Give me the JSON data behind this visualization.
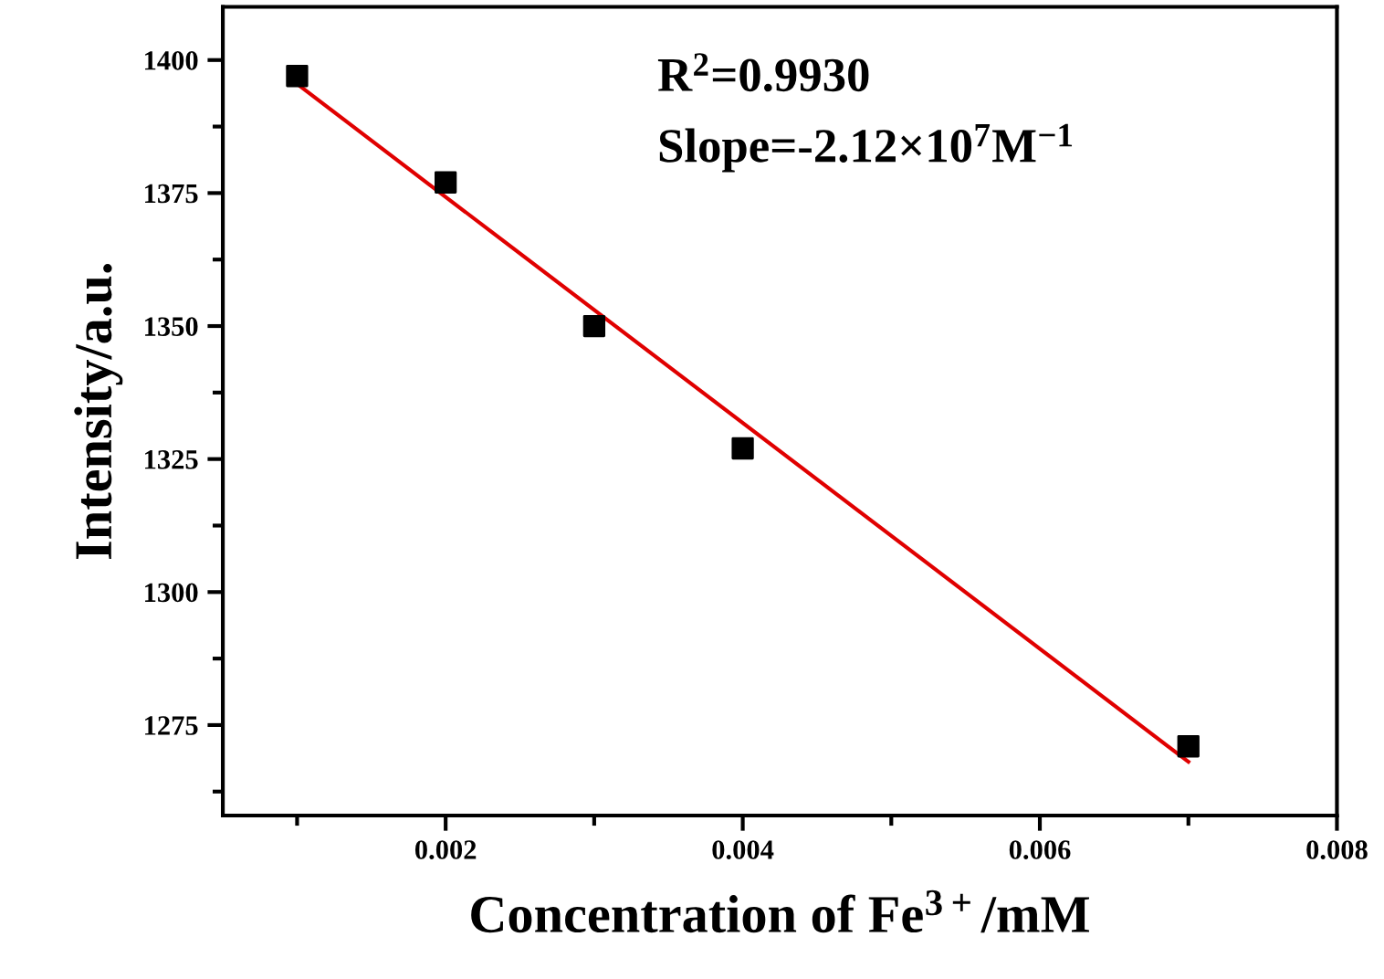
{
  "chart_data": {
    "type": "scatter",
    "xlabel": "Concentration of Fe$^{3+}$/mM",
    "ylabel": "Intensity/a.u.",
    "x": [
      0.001,
      0.002,
      0.003,
      0.004,
      0.007
    ],
    "series": [
      {
        "color": "#000000",
        "marker": "square",
        "values": [
          1397,
          1377,
          1350,
          1327,
          1271
        ]
      },
      {
        "type": "line",
        "color": "#e00000",
        "x": [
          0.001,
          0.007
        ],
        "values": [
          1395.5,
          1268.1
        ],
        "marker": "none",
        "line_style": "solid"
      }
    ],
    "annotations": [
      "R$^{2}$=0.9930",
      "Slope=-2.12×10$^{7}$M$^{−1}$"
    ],
    "xlim": [
      0.0005,
      0.008
    ],
    "xticks": [
      0.002,
      0.004,
      0.006,
      0.008
    ],
    "ylim": [
      1258,
      1410
    ],
    "yticks": [
      1275,
      1300,
      1325,
      1350,
      1375,
      1400
    ],
    "grid": false,
    "legend": false
  }
}
